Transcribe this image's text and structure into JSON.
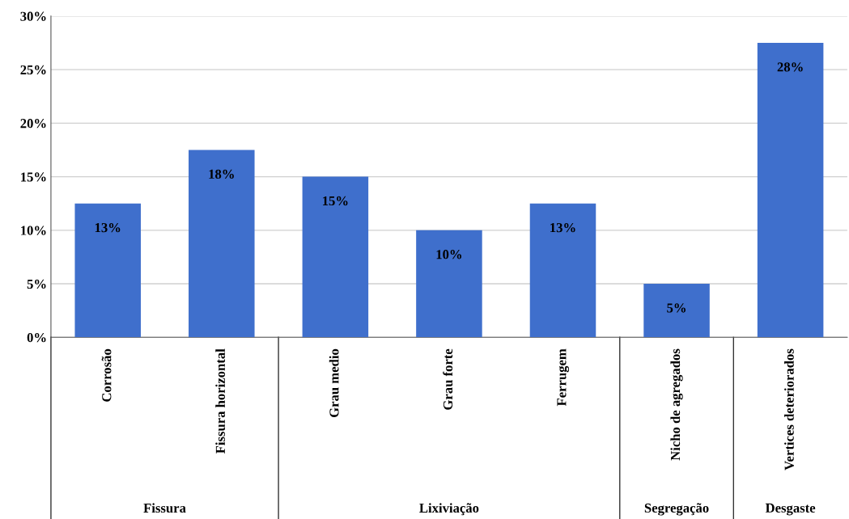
{
  "chart_data": {
    "type": "bar",
    "categories": [
      "Corrosão",
      "Fissura horizontal",
      "Grau medio",
      "Grau forte",
      "Ferrugem",
      "Nicho de agregados",
      "Vertices deteriorados"
    ],
    "values": [
      12.5,
      17.5,
      15,
      10,
      12.5,
      5,
      27.5
    ],
    "value_labels": [
      "13%",
      "18%",
      "15%",
      "10%",
      "13%",
      "5%",
      "28%"
    ],
    "color": "#3f6fcc",
    "ylim": [
      0,
      30
    ],
    "yticks": [
      {
        "value": 0,
        "label": "0%"
      },
      {
        "value": 5,
        "label": "5%"
      },
      {
        "value": 10,
        "label": "10%"
      },
      {
        "value": 15,
        "label": "15%"
      },
      {
        "value": 20,
        "label": "20%"
      },
      {
        "value": 25,
        "label": "25%"
      },
      {
        "value": 30,
        "label": "30%"
      }
    ],
    "grid": "y",
    "annotations": [
      "Fissura",
      "Lixiviação",
      "Segregação",
      "Desgaste"
    ]
  }
}
